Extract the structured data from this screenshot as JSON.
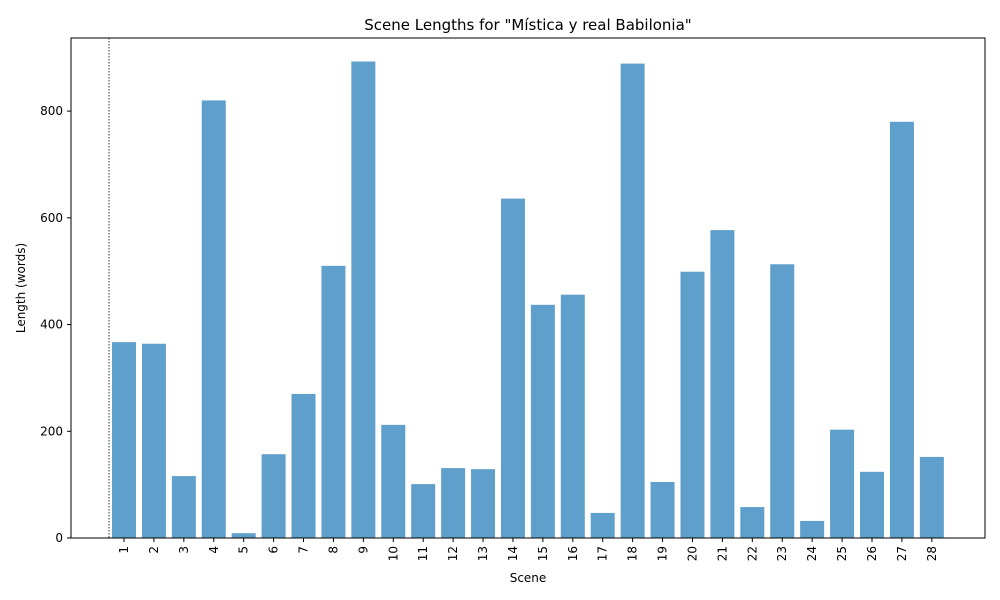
{
  "chart_data": {
    "type": "bar",
    "title": "Scene Lengths for \"Mística y real Babilonia\"",
    "xlabel": "Scene",
    "ylabel": "Length (words)",
    "categories": [
      "1",
      "2",
      "3",
      "4",
      "5",
      "6",
      "7",
      "8",
      "9",
      "10",
      "11",
      "12",
      "13",
      "14",
      "15",
      "16",
      "17",
      "18",
      "19",
      "20",
      "21",
      "22",
      "23",
      "24",
      "25",
      "26",
      "27",
      "28"
    ],
    "values": [
      367,
      364,
      116,
      820,
      9,
      157,
      270,
      510,
      893,
      212,
      101,
      131,
      129,
      636,
      437,
      456,
      47,
      889,
      105,
      499,
      577,
      58,
      513,
      32,
      203,
      124,
      780,
      152
    ],
    "ylim": [
      0,
      937
    ],
    "yticks": [
      0,
      200,
      400,
      600,
      800
    ],
    "grid": false,
    "bar_color": "#5f9fcc",
    "marker_line": {
      "style": "dotted",
      "color": "#000000",
      "position": "before-first-bar"
    }
  }
}
